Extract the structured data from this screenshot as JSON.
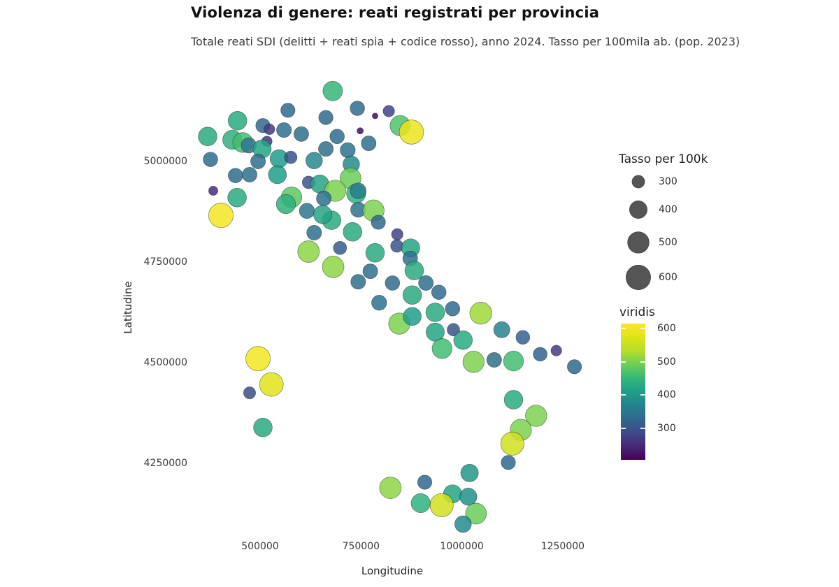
{
  "header": {
    "title": "Violenza di genere: reati registrati per provincia",
    "subtitle": "Totale reati SDI (delitti + reati spia + codice rosso), anno 2024. Tasso per 100mila ab. (pop. 2023)"
  },
  "axes": {
    "x_label": "Longitudine",
    "y_label": "Latitudine",
    "x_ticks": [
      "500000",
      "750000",
      "1000000",
      "1250000"
    ],
    "y_ticks": [
      "5000000",
      "4750000",
      "4500000",
      "4250000"
    ]
  },
  "size_legend": {
    "title": "Tasso per 100k",
    "entries": [
      "300",
      "400",
      "500",
      "600"
    ],
    "circle_color": "#555555"
  },
  "color_legend": {
    "title": "viridis",
    "ticks": [
      "600",
      "500",
      "400",
      "300"
    ],
    "domain": [
      205,
      615
    ]
  },
  "chart_data": {
    "type": "scatter",
    "title": "Violenza di genere: reati registrati per provincia",
    "xlabel": "Longitudine",
    "ylabel": "Latitudine",
    "x_tick_values": [
      500000,
      750000,
      1000000,
      1250000
    ],
    "y_tick_values": [
      5000000,
      4750000,
      4500000,
      4250000
    ],
    "x_range": [
      310000,
      1330000
    ],
    "y_range": [
      4060000,
      5210000
    ],
    "grid": false,
    "legend_position": "right",
    "size_encoding": "Tasso per 100k",
    "color_encoding": "viridis, tasso per 100k, domain 205-615",
    "columns": [
      "lon",
      "lat",
      "tasso_per_100k"
    ],
    "points": [
      [
        680000,
        5175000,
        450
      ],
      [
        569000,
        5127000,
        330
      ],
      [
        663000,
        5109000,
        330
      ],
      [
        741000,
        5132000,
        335
      ],
      [
        785000,
        5113000,
        215
      ],
      [
        819000,
        5125000,
        280
      ],
      [
        444000,
        5101000,
        430
      ],
      [
        847000,
        5089000,
        470
      ],
      [
        875000,
        5073000,
        590
      ],
      [
        748000,
        5076000,
        220
      ],
      [
        507000,
        5089000,
        330
      ],
      [
        523000,
        5080000,
        270
      ],
      [
        517000,
        5050000,
        265
      ],
      [
        431000,
        5054000,
        440
      ],
      [
        457000,
        5047000,
        460
      ],
      [
        472000,
        5040000,
        350
      ],
      [
        559000,
        5078000,
        340
      ],
      [
        602000,
        5068000,
        340
      ],
      [
        505000,
        5031000,
        420
      ],
      [
        547000,
        5007000,
        410
      ],
      [
        576000,
        5010000,
        300
      ],
      [
        495000,
        5000000,
        340
      ],
      [
        370000,
        5062000,
        430
      ],
      [
        377000,
        5005000,
        335
      ],
      [
        663000,
        5031000,
        340
      ],
      [
        691000,
        5062000,
        335
      ],
      [
        769000,
        5045000,
        340
      ],
      [
        717000,
        5028000,
        345
      ],
      [
        634000,
        5002000,
        380
      ],
      [
        726000,
        4993000,
        380
      ],
      [
        724000,
        4958000,
        490
      ],
      [
        620000,
        4948000,
        300
      ],
      [
        648000,
        4944000,
        420
      ],
      [
        686000,
        4927000,
        500
      ],
      [
        738000,
        4920000,
        440
      ],
      [
        439000,
        4965000,
        335
      ],
      [
        474000,
        4967000,
        340
      ],
      [
        543000,
        4967000,
        410
      ],
      [
        384000,
        4927000,
        250
      ],
      [
        443000,
        4910000,
        430
      ],
      [
        578000,
        4911000,
        480
      ],
      [
        403000,
        4866000,
        600
      ],
      [
        564000,
        4894000,
        440
      ],
      [
        616000,
        4877000,
        350
      ],
      [
        658000,
        4908000,
        340
      ],
      [
        677000,
        4854000,
        430
      ],
      [
        655000,
        4868000,
        420
      ],
      [
        743000,
        4927000,
        360
      ],
      [
        743000,
        4880000,
        345
      ],
      [
        781000,
        4878000,
        500
      ],
      [
        793000,
        4849000,
        330
      ],
      [
        840000,
        4819000,
        280
      ],
      [
        634000,
        4823000,
        340
      ],
      [
        729000,
        4825000,
        430
      ],
      [
        620000,
        4776000,
        510
      ],
      [
        698000,
        4785000,
        310
      ],
      [
        785000,
        4773000,
        430
      ],
      [
        839000,
        4790000,
        300
      ],
      [
        873000,
        4785000,
        420
      ],
      [
        872000,
        4759000,
        340
      ],
      [
        681000,
        4738000,
        510
      ],
      [
        773000,
        4727000,
        340
      ],
      [
        882000,
        4729000,
        430
      ],
      [
        743000,
        4701000,
        340
      ],
      [
        828000,
        4698000,
        335
      ],
      [
        911000,
        4698000,
        340
      ],
      [
        877000,
        4668000,
        430
      ],
      [
        943000,
        4675000,
        335
      ],
      [
        795000,
        4649000,
        345
      ],
      [
        934000,
        4625000,
        430
      ],
      [
        977000,
        4634000,
        335
      ],
      [
        1047000,
        4623000,
        520
      ],
      [
        845000,
        4597000,
        500
      ],
      [
        877000,
        4615000,
        410
      ],
      [
        934000,
        4576000,
        420
      ],
      [
        979000,
        4582000,
        300
      ],
      [
        1003000,
        4556000,
        430
      ],
      [
        951000,
        4535000,
        460
      ],
      [
        1029000,
        4502000,
        500
      ],
      [
        1099000,
        4582000,
        370
      ],
      [
        1151000,
        4563000,
        320
      ],
      [
        1080000,
        4507000,
        340
      ],
      [
        1128000,
        4504000,
        460
      ],
      [
        1194000,
        4521000,
        320
      ],
      [
        1234000,
        4530000,
        270
      ],
      [
        1279000,
        4490000,
        330
      ],
      [
        1128000,
        4408000,
        430
      ],
      [
        1184000,
        4368000,
        500
      ],
      [
        1146000,
        4333000,
        500
      ],
      [
        1125000,
        4299000,
        560
      ],
      [
        1115000,
        4252000,
        330
      ],
      [
        1019000,
        4226000,
        400
      ],
      [
        908000,
        4203000,
        330
      ],
      [
        977000,
        4174000,
        420
      ],
      [
        950000,
        4146000,
        560
      ],
      [
        1016000,
        4167000,
        390
      ],
      [
        823000,
        4189000,
        510
      ],
      [
        898000,
        4151000,
        440
      ],
      [
        1035000,
        4125000,
        490
      ],
      [
        1003000,
        4099000,
        380
      ],
      [
        495000,
        4510000,
        600
      ],
      [
        528000,
        4446000,
        575
      ],
      [
        474000,
        4425000,
        290
      ],
      [
        507000,
        4339000,
        430
      ]
    ]
  }
}
